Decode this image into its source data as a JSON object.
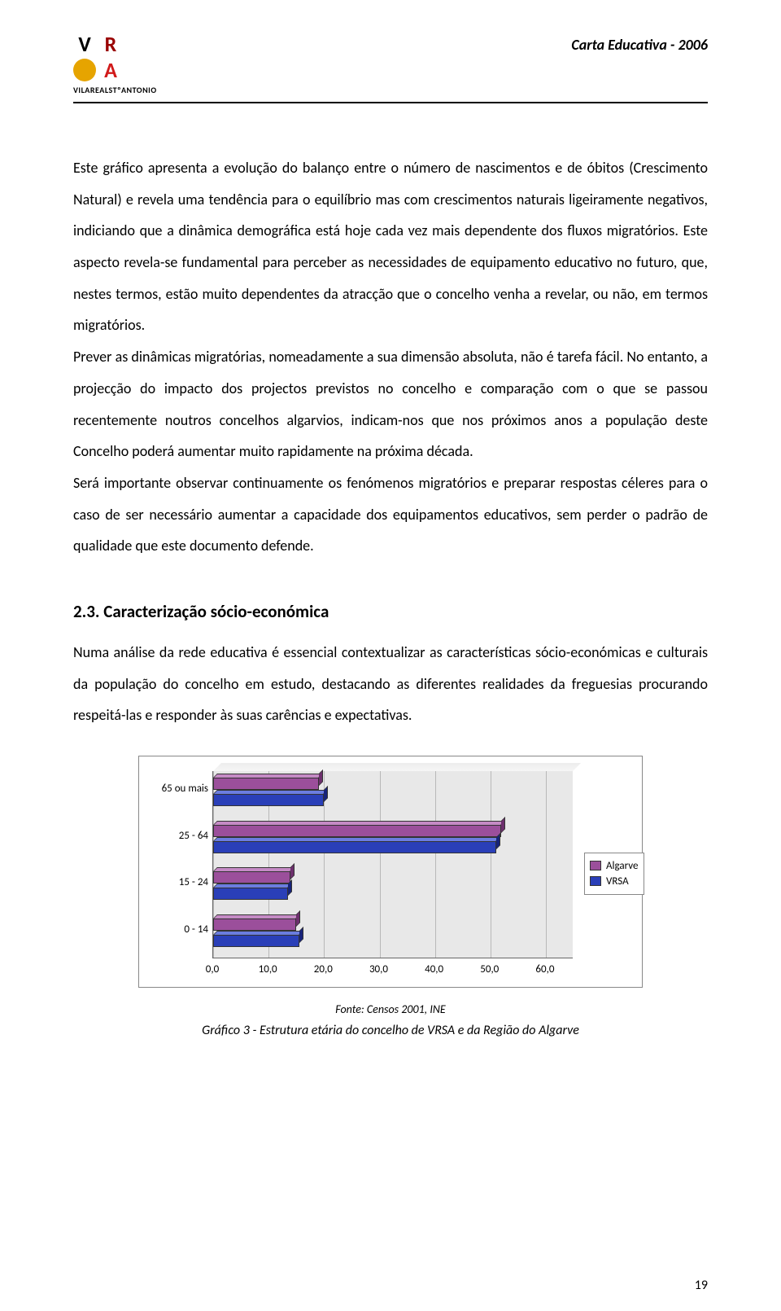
{
  "header": {
    "doc_title": "Carta Educativa - 2006",
    "logo_caption": "VILAREALSTºANTONIO"
  },
  "body": {
    "p1": "Este gráfico apresenta a evolução do balanço entre o número de nascimentos e de óbitos (Crescimento Natural) e revela uma tendência para o equilíbrio mas com crescimentos naturais ligeiramente negativos, indiciando que a dinâmica demográfica está hoje cada vez mais dependente dos fluxos migratórios. Este aspecto revela-se fundamental para perceber as necessidades de equipamento educativo no futuro, que, nestes termos, estão muito dependentes da atracção que o concelho venha a revelar, ou não, em termos migratórios.",
    "p2": "Prever as dinâmicas migratórias, nomeadamente a sua dimensão absoluta, não é tarefa fácil. No entanto, a projecção do impacto dos projectos previstos no concelho e comparação com o que se passou recentemente noutros concelhos algarvios, indicam-nos que nos próximos anos a população deste Concelho poderá aumentar muito rapidamente na próxima década.",
    "p3": "Será importante observar continuamente os fenómenos migratórios e preparar respostas céleres para o caso de ser necessário aumentar a capacidade dos equipamentos educativos, sem perder o padrão de qualidade que este documento defende.",
    "section_head": "2.3. Caracterização sócio-económica",
    "p4": "Numa análise da rede educativa é essencial contextualizar as características sócio-económicas e culturais da população do concelho em estudo, destacando as diferentes realidades da freguesias procurando respeitá-las e responder às suas carências e expectativas."
  },
  "chart": {
    "type": "bar",
    "orientation": "horizontal",
    "categories": [
      "65 ou mais",
      "25 - 64",
      "15 - 24",
      "0 - 14"
    ],
    "series": [
      {
        "name": "Algarve",
        "color": "#9b4f9b",
        "color_top": "#c58ac5",
        "color_side": "#6d2f6d",
        "values": [
          19.0,
          52.0,
          14.0,
          15.0
        ]
      },
      {
        "name": "VRSA",
        "color": "#2a3fb8",
        "color_top": "#6b7de0",
        "color_side": "#17237a",
        "values": [
          20.0,
          51.0,
          13.5,
          15.5
        ]
      }
    ],
    "xlim": [
      0,
      60
    ],
    "xtick_step": 10,
    "xticks": [
      "0,0",
      "10,0",
      "20,0",
      "30,0",
      "40,0",
      "50,0",
      "60,0"
    ],
    "background_color": "#e8e8e8",
    "grid_color": "#b8b8b8",
    "category_label_fontsize": 13,
    "tick_label_fontsize": 13
  },
  "chart_meta": {
    "source": "Fonte: Censos 2001, INE",
    "caption": "Gráfico 3 - Estrutura etária do concelho de VRSA e da Região do Algarve"
  },
  "page_number": "19"
}
